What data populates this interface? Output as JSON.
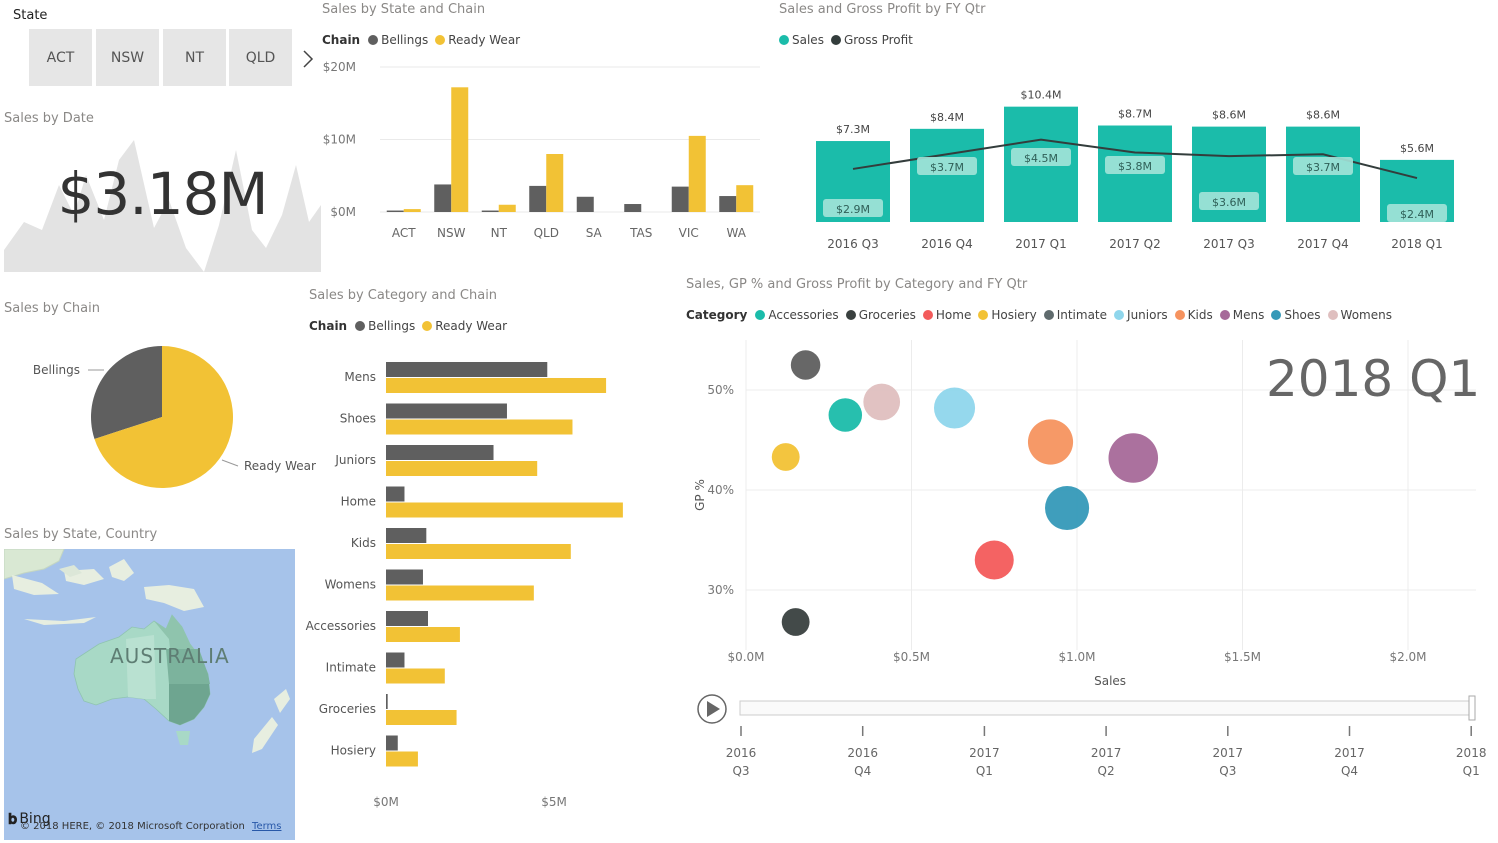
{
  "slicer": {
    "title": "State",
    "items": [
      "ACT",
      "NSW",
      "NT",
      "QLD"
    ],
    "chevron_icon": "chevron-right-icon"
  },
  "card": {
    "title": "Sales by Date",
    "value": "$3.18M",
    "background": "#e3e3e3"
  },
  "colors": {
    "bellings": "#5f5f5f",
    "ready_wear": "#f2c235",
    "sales": "#1bbcaa",
    "gross_profit": "#333d3c",
    "map_water": "#a6c3ea",
    "map_land": "#a8d9c6"
  },
  "map": {
    "title": "Sales by State, Country",
    "country_label": "AUSTRALIA",
    "bing_logo": "Bing",
    "attribution": "© 2018 HERE, © 2018 Microsoft Corporation",
    "terms": "Terms"
  },
  "play": {
    "icon": "play-icon",
    "current_label": "2018 Q1"
  },
  "chart_data": [
    {
      "id": "state_chain",
      "type": "bar",
      "title": "Sales by State and Chain",
      "legend_title": "Chain",
      "categories": [
        "ACT",
        "NSW",
        "NT",
        "QLD",
        "SA",
        "TAS",
        "VIC",
        "WA"
      ],
      "series": [
        {
          "name": "Bellings",
          "values": [
            0.2,
            3.8,
            0.2,
            3.6,
            2.1,
            1.1,
            3.5,
            2.2
          ]
        },
        {
          "name": "Ready Wear",
          "values": [
            0.4,
            17.2,
            1.0,
            8.0,
            0,
            0,
            10.5,
            3.7
          ]
        }
      ],
      "yticks": [
        "$0M",
        "$10M",
        "$20M"
      ],
      "ytick_values": [
        0,
        10,
        20
      ],
      "ylim": [
        0,
        20
      ],
      "grid": true
    },
    {
      "id": "pie_chain",
      "type": "pie",
      "title": "Sales by Chain",
      "labels": [
        "Bellings",
        "Ready Wear"
      ],
      "values": [
        30,
        70
      ]
    },
    {
      "id": "category_chain",
      "type": "bar",
      "orientation": "horizontal",
      "title": "Sales by Category and Chain",
      "legend_title": "Chain",
      "categories": [
        "Mens",
        "Shoes",
        "Juniors",
        "Home",
        "Kids",
        "Womens",
        "Accessories",
        "Intimate",
        "Groceries",
        "Hosiery"
      ],
      "series": [
        {
          "name": "Bellings",
          "values": [
            4.8,
            3.6,
            3.2,
            0.55,
            1.2,
            1.1,
            1.25,
            0.55,
            0.05,
            0.35
          ]
        },
        {
          "name": "Ready Wear",
          "values": [
            6.55,
            5.55,
            4.5,
            7.05,
            5.5,
            4.4,
            2.2,
            1.75,
            2.1,
            0.95
          ]
        }
      ],
      "xticks": [
        "$0M",
        "$5M"
      ],
      "xtick_values": [
        0,
        5
      ],
      "xlim": [
        0,
        7.5
      ]
    },
    {
      "id": "fy_qtr",
      "type": "bar",
      "title": "Sales and Gross Profit by FY Qtr",
      "categories": [
        "2016 Q3",
        "2016 Q4",
        "2017 Q1",
        "2017 Q2",
        "2017 Q3",
        "2017 Q4",
        "2018 Q1"
      ],
      "series": [
        {
          "name": "Sales",
          "type": "bar",
          "values": [
            7.3,
            8.4,
            10.4,
            8.7,
            8.6,
            8.6,
            5.6
          ],
          "labels": [
            "$7.3M",
            "$8.4M",
            "$10.4M",
            "$8.7M",
            "$8.6M",
            "$8.6M",
            "$5.6M"
          ]
        },
        {
          "name": "Gross Profit",
          "type": "line",
          "values": [
            2.9,
            3.7,
            4.5,
            3.8,
            3.6,
            3.7,
            2.4
          ],
          "labels": [
            "$2.9M",
            "$3.7M",
            "$4.5M",
            "$3.8M",
            "$3.6M",
            "$3.7M",
            "$2.4M"
          ]
        }
      ],
      "ylim": [
        0,
        11
      ]
    },
    {
      "id": "scatter_category",
      "type": "scatter",
      "title": "Sales, GP % and Gross Profit by Category and FY Qtr",
      "legend_title": "Category",
      "xlabel": "Sales",
      "ylabel": "GP %",
      "xticks": [
        "$0.0M",
        "$0.5M",
        "$1.0M",
        "$1.5M",
        "$2.0M"
      ],
      "xtick_values": [
        0,
        0.5,
        1.0,
        1.5,
        2.0
      ],
      "yticks": [
        "30%",
        "40%",
        "50%"
      ],
      "ytick_values": [
        30,
        40,
        50
      ],
      "xlim": [
        0,
        2.2
      ],
      "ylim": [
        24,
        55
      ],
      "grid": true,
      "points": [
        {
          "name": "Accessories",
          "x": 0.3,
          "y": 47.5,
          "size": 0.14,
          "color": "#1bbcaa"
        },
        {
          "name": "Groceries",
          "x": 0.18,
          "y": 52.5,
          "size": 0.08,
          "color": "#5f5f5f"
        },
        {
          "name": "Groceries",
          "x": 0.15,
          "y": 26.8,
          "size": 0.06,
          "color": "#39403f"
        },
        {
          "name": "Home",
          "x": 0.75,
          "y": 33.0,
          "size": 0.25,
          "color": "#f35b5b"
        },
        {
          "name": "Hosiery",
          "x": 0.12,
          "y": 43.3,
          "size": 0.06,
          "color": "#f2c235"
        },
        {
          "name": "Juniors",
          "x": 0.63,
          "y": 48.2,
          "size": 0.3,
          "color": "#8fd6ec"
        },
        {
          "name": "Kids",
          "x": 0.92,
          "y": 44.8,
          "size": 0.41,
          "color": "#f6935f"
        },
        {
          "name": "Mens",
          "x": 1.17,
          "y": 43.2,
          "size": 0.55,
          "color": "#a66999"
        },
        {
          "name": "Shoes",
          "x": 0.97,
          "y": 38.2,
          "size": 0.38,
          "color": "#3599b8"
        },
        {
          "name": "Womens",
          "x": 0.41,
          "y": 48.8,
          "size": 0.2,
          "color": "#dfbfbf"
        }
      ],
      "legend_entries": [
        {
          "name": "Accessories",
          "color": "#1bbcaa"
        },
        {
          "name": "Groceries",
          "color": "#39403f"
        },
        {
          "name": "Home",
          "color": "#f35b5b"
        },
        {
          "name": "Hosiery",
          "color": "#f2c235"
        },
        {
          "name": "Intimate",
          "color": "#5f6b6d"
        },
        {
          "name": "Juniors",
          "color": "#8fd6ec"
        },
        {
          "name": "Kids",
          "color": "#f6935f"
        },
        {
          "name": "Mens",
          "color": "#a66999"
        },
        {
          "name": "Shoes",
          "color": "#3599b8"
        },
        {
          "name": "Womens",
          "color": "#dfbfbf"
        }
      ],
      "play_axis": [
        {
          "year": "2016",
          "qtr": "Q3"
        },
        {
          "year": "2016",
          "qtr": "Q4"
        },
        {
          "year": "2017",
          "qtr": "Q1"
        },
        {
          "year": "2017",
          "qtr": "Q2"
        },
        {
          "year": "2017",
          "qtr": "Q3"
        },
        {
          "year": "2017",
          "qtr": "Q4"
        },
        {
          "year": "2018",
          "qtr": "Q1"
        }
      ]
    }
  ]
}
